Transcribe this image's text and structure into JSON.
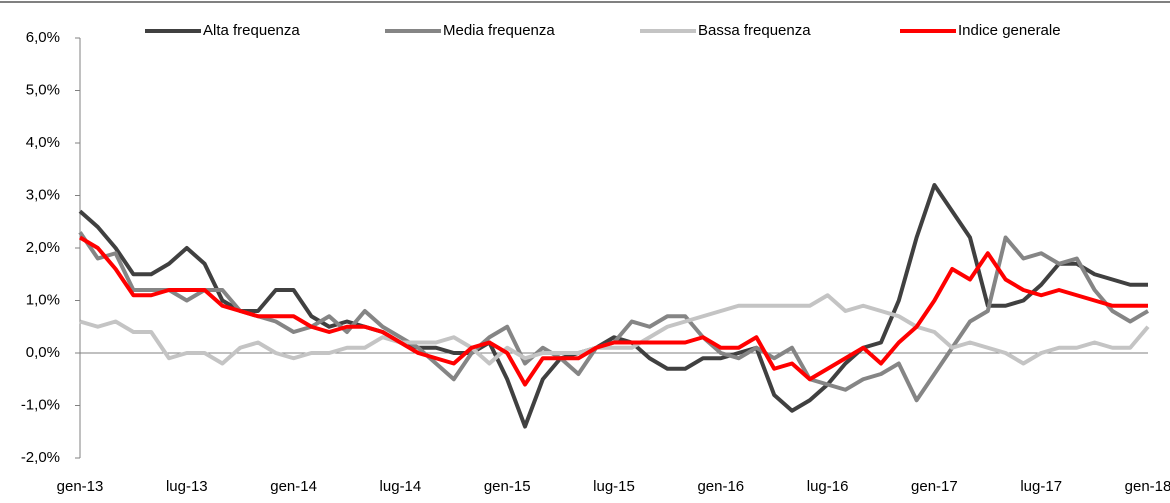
{
  "chart_data": {
    "type": "line",
    "categories": [
      "gen-13",
      null,
      null,
      null,
      null,
      null,
      "lug-13",
      null,
      null,
      null,
      null,
      null,
      "gen-14",
      null,
      null,
      null,
      null,
      null,
      "lug-14",
      null,
      null,
      null,
      null,
      null,
      "gen-15",
      null,
      null,
      null,
      null,
      null,
      "lug-15",
      null,
      null,
      null,
      null,
      null,
      "gen-16",
      null,
      null,
      null,
      null,
      null,
      "lug-16",
      null,
      null,
      null,
      null,
      null,
      "gen-17",
      null,
      null,
      null,
      null,
      null,
      "lug-17",
      null,
      null,
      null,
      null,
      null,
      "gen-18"
    ],
    "series": [
      {
        "name": "Alta frequenza",
        "color": "#404040",
        "values": [
          2.7,
          2.4,
          2.0,
          1.5,
          1.5,
          1.7,
          2.0,
          1.7,
          1.0,
          0.8,
          0.8,
          1.2,
          1.2,
          0.7,
          0.5,
          0.6,
          0.5,
          0.4,
          0.2,
          0.1,
          0.1,
          0.0,
          0.0,
          0.2,
          -0.5,
          -1.4,
          -0.5,
          -0.1,
          0.0,
          0.1,
          0.3,
          0.2,
          -0.1,
          -0.3,
          -0.3,
          -0.1,
          -0.1,
          0.0,
          0.1,
          -0.8,
          -1.1,
          -0.9,
          -0.6,
          -0.2,
          0.1,
          0.2,
          1.0,
          2.2,
          3.2,
          2.7,
          2.2,
          0.9,
          0.9,
          1.0,
          1.3,
          1.7,
          1.7,
          1.5,
          1.4,
          1.3,
          1.3
        ]
      },
      {
        "name": "Media frequenza",
        "color": "#858585",
        "values": [
          2.3,
          1.8,
          1.9,
          1.2,
          1.2,
          1.2,
          1.0,
          1.2,
          1.2,
          0.8,
          0.7,
          0.6,
          0.4,
          0.5,
          0.7,
          0.4,
          0.8,
          0.5,
          0.3,
          0.1,
          -0.2,
          -0.5,
          0.0,
          0.3,
          0.5,
          -0.2,
          0.1,
          -0.1,
          -0.4,
          0.1,
          0.2,
          0.6,
          0.5,
          0.7,
          0.7,
          0.3,
          0.0,
          -0.1,
          0.1,
          -0.1,
          0.1,
          -0.5,
          -0.6,
          -0.7,
          -0.5,
          -0.4,
          -0.2,
          -0.9,
          -0.4,
          0.1,
          0.6,
          0.8,
          2.2,
          1.8,
          1.9,
          1.7,
          1.8,
          1.2,
          0.8,
          0.6,
          0.8
        ]
      },
      {
        "name": "Bassa frequenza",
        "color": "#c4c4c4",
        "values": [
          0.6,
          0.5,
          0.6,
          0.4,
          0.4,
          -0.1,
          0.0,
          0.0,
          -0.2,
          0.1,
          0.2,
          0.0,
          -0.1,
          0.0,
          0.0,
          0.1,
          0.1,
          0.3,
          0.2,
          0.2,
          0.2,
          0.3,
          0.1,
          -0.2,
          0.1,
          -0.1,
          0.0,
          0.0,
          0.0,
          0.1,
          0.1,
          0.1,
          0.3,
          0.5,
          0.6,
          0.7,
          0.8,
          0.9,
          0.9,
          0.9,
          0.9,
          0.9,
          1.1,
          0.8,
          0.9,
          0.8,
          0.7,
          0.5,
          0.4,
          0.1,
          0.2,
          0.1,
          0.0,
          -0.2,
          0.0,
          0.1,
          0.1,
          0.2,
          0.1,
          0.1,
          0.5
        ]
      },
      {
        "name": "Indice generale",
        "color": "#ff0000",
        "values": [
          2.2,
          2.0,
          1.6,
          1.1,
          1.1,
          1.2,
          1.2,
          1.2,
          0.9,
          0.8,
          0.7,
          0.7,
          0.7,
          0.5,
          0.4,
          0.5,
          0.5,
          0.4,
          0.2,
          0.0,
          -0.1,
          -0.2,
          0.1,
          0.2,
          0.0,
          -0.6,
          -0.1,
          -0.1,
          -0.1,
          0.1,
          0.2,
          0.2,
          0.2,
          0.2,
          0.2,
          0.3,
          0.1,
          0.1,
          0.3,
          -0.3,
          -0.2,
          -0.5,
          -0.3,
          -0.1,
          0.1,
          -0.2,
          0.2,
          0.5,
          1.0,
          1.6,
          1.4,
          1.9,
          1.4,
          1.2,
          1.1,
          1.2,
          1.1,
          1.0,
          0.9,
          0.9,
          0.9
        ]
      }
    ],
    "ylim": [
      -2,
      6
    ],
    "yticks": [
      {
        "value": -2,
        "label": "-2,0%"
      },
      {
        "value": -1,
        "label": "-1,0%"
      },
      {
        "value": 0,
        "label": "0,0%"
      },
      {
        "value": 1,
        "label": "1,0%"
      },
      {
        "value": 2,
        "label": "2,0%"
      },
      {
        "value": 3,
        "label": "3,0%"
      },
      {
        "value": 4,
        "label": "4,0%"
      },
      {
        "value": 5,
        "label": "5,0%"
      },
      {
        "value": 6,
        "label": "6,0%"
      }
    ],
    "legend": "top"
  }
}
